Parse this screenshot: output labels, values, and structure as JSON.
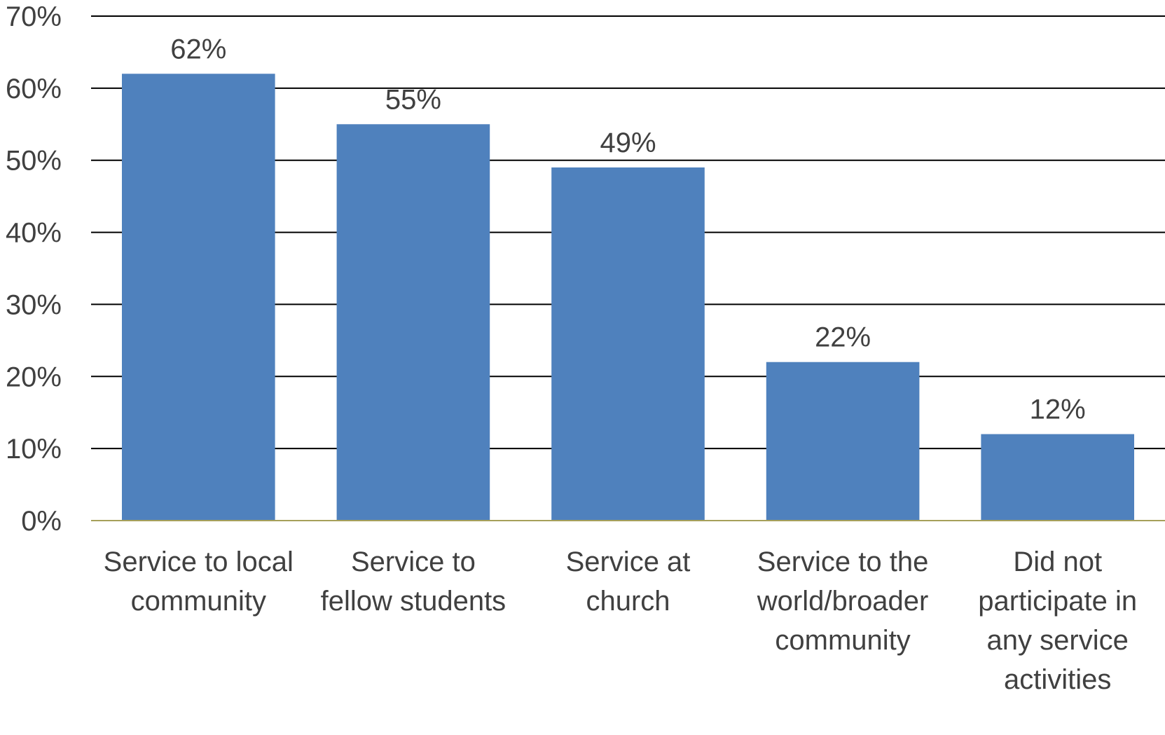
{
  "chart_data": {
    "type": "bar",
    "categories": [
      [
        "Service to local",
        "community"
      ],
      [
        "Service to",
        "fellow students"
      ],
      [
        "Service at",
        "church"
      ],
      [
        "Service to the",
        "world/broader",
        "community"
      ],
      [
        "Did not",
        "participate in",
        "any service",
        "activities"
      ]
    ],
    "values": [
      62,
      55,
      49,
      22,
      12
    ],
    "data_labels": [
      "62%",
      "55%",
      "49%",
      "22%",
      "12%"
    ],
    "y_ticks": [
      "0%",
      "10%",
      "20%",
      "30%",
      "40%",
      "50%",
      "60%",
      "70%"
    ],
    "ylim": [
      0,
      70
    ],
    "grid": true,
    "legend": "none",
    "title": "",
    "xlabel": "",
    "ylabel": "",
    "colors": {
      "bar": "#4f81bd",
      "grid": "#000000",
      "baseline": "#a6a05a",
      "text": "#404040"
    }
  }
}
